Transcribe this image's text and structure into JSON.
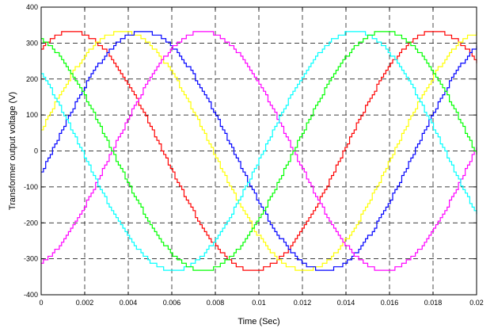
{
  "chart_data": {
    "type": "line",
    "title": "",
    "xlabel": "Time (Sec)",
    "ylabel": "Transformer output voltage (V)",
    "xlim": [
      0,
      0.02
    ],
    "ylim": [
      -400,
      400
    ],
    "xticks": [
      0,
      0.002,
      0.004,
      0.006,
      0.008,
      0.01,
      0.012,
      0.014,
      0.016,
      0.018,
      0.02
    ],
    "xtick_labels": [
      "0",
      "0.002",
      "0.004",
      "0.006",
      "0.008",
      "0.01",
      "0.012",
      "0.014",
      "0.016",
      "0.018",
      "0.02"
    ],
    "yticks": [
      -400,
      -300,
      -200,
      -100,
      0,
      100,
      200,
      300,
      400
    ],
    "ytick_labels": [
      "-400",
      "-300",
      "-200",
      "-100",
      "0",
      "100",
      "200",
      "300",
      "400"
    ],
    "grid": true,
    "legend": "none",
    "series_shape": "staircase multilevel sinusoid",
    "frequency_hz": 60,
    "amplitude_v": 332,
    "step_count_per_period": 160,
    "series": [
      {
        "color": "#ff0000",
        "phase_deg": 60,
        "peak_times_s": [
          0.0014,
          0.0181
        ]
      },
      {
        "color": "#ffff00",
        "phase_deg": 10,
        "peak_times_s": [
          0.0036,
          0.0202
        ]
      },
      {
        "color": "#0000ff",
        "phase_deg": -10,
        "peak_times_s": [
          0.0046
        ]
      },
      {
        "color": "#ff00ff",
        "phase_deg": -70,
        "peak_times_s": [
          0.0074
        ]
      },
      {
        "color": "#00ffff",
        "phase_deg": 140,
        "peak_times_s": [
          0.0106
        ]
      },
      {
        "color": "#00ff00",
        "phase_deg": 110,
        "peak_times_s": [
          0.0012,
          0.0178
        ]
      }
    ]
  }
}
